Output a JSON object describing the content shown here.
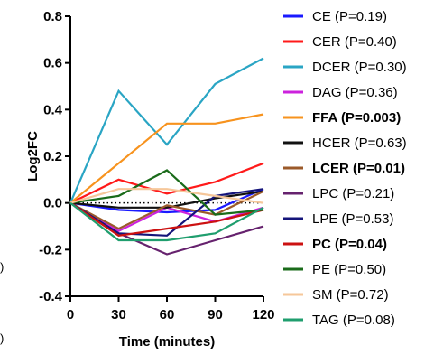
{
  "chart_data": {
    "type": "line",
    "title": "",
    "xlabel": "Time (minutes)",
    "ylabel": "Log2FC",
    "x": [
      0,
      30,
      60,
      90,
      120
    ],
    "xticks": [
      "0",
      "30",
      "60",
      "90",
      "120"
    ],
    "yticks": [
      "-0.4",
      "-0.2",
      "0.0",
      "0.2",
      "0.4",
      "0.6",
      "0.8"
    ],
    "xlim": [
      0,
      120
    ],
    "ylim": [
      -0.4,
      0.8
    ],
    "grid": false,
    "zero_line": "dotted",
    "legend_position": "right",
    "series": [
      {
        "name": "CE (P=0.19)",
        "color": "#1a1aff",
        "bold": false,
        "values": [
          0,
          -0.03,
          -0.04,
          -0.03,
          0.06
        ]
      },
      {
        "name": "CER (P=0.40)",
        "color": "#ff1a1a",
        "bold": false,
        "values": [
          0,
          0.1,
          0.04,
          0.09,
          0.17
        ]
      },
      {
        "name": "DCER (P=0.30)",
        "color": "#2aa5c4",
        "bold": false,
        "values": [
          0,
          0.48,
          0.25,
          0.51,
          0.62
        ]
      },
      {
        "name": "DAG (P=0.36)",
        "color": "#cc22dd",
        "bold": false,
        "values": [
          0,
          -0.12,
          -0.02,
          -0.08,
          -0.02
        ]
      },
      {
        "name": "FFA (P=0.003)",
        "color": "#f7931e",
        "bold": true,
        "values": [
          0,
          0.17,
          0.34,
          0.34,
          0.38
        ]
      },
      {
        "name": "HCER (P=0.63)",
        "color": "#111111",
        "bold": false,
        "values": [
          0,
          -0.02,
          -0.02,
          0.02,
          0.05
        ]
      },
      {
        "name": "LCER (P=0.01)",
        "color": "#9b5a2a",
        "bold": true,
        "values": [
          0,
          -0.11,
          -0.01,
          -0.05,
          0.05
        ]
      },
      {
        "name": "LPC (P=0.21)",
        "color": "#66226e",
        "bold": false,
        "values": [
          0,
          -0.13,
          -0.22,
          -0.16,
          -0.1
        ]
      },
      {
        "name": "LPE (P=0.53)",
        "color": "#14147a",
        "bold": false,
        "values": [
          0,
          -0.13,
          -0.14,
          0.03,
          0.06
        ]
      },
      {
        "name": "PC (P=0.04)",
        "color": "#cc1111",
        "bold": true,
        "values": [
          0,
          -0.14,
          -0.11,
          -0.08,
          -0.03
        ]
      },
      {
        "name": "PE (P=0.50)",
        "color": "#1a6b1a",
        "bold": false,
        "values": [
          0,
          0.03,
          0.14,
          -0.05,
          -0.03
        ]
      },
      {
        "name": "SM (P=0.72)",
        "color": "#f6c79a",
        "bold": false,
        "values": [
          0,
          0.06,
          0.06,
          0.03,
          0.0
        ]
      },
      {
        "name": "TAG (P=0.08)",
        "color": "#1f9e6e",
        "bold": false,
        "values": [
          0,
          -0.16,
          -0.16,
          -0.13,
          -0.02
        ]
      }
    ]
  },
  "stray_marks": [
    ")",
    ")"
  ]
}
